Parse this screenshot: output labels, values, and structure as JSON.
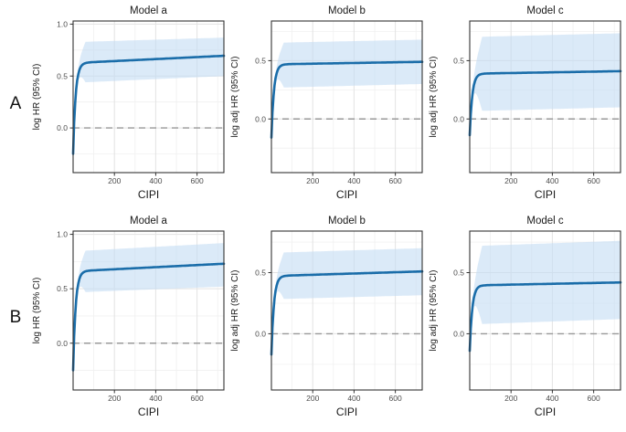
{
  "figure": {
    "row_labels": [
      "A",
      "B"
    ],
    "column_titles": [
      "Model a",
      "Model b",
      "Model c"
    ]
  },
  "styles": {
    "line_color": "#1a6da9",
    "ribbon_color": "#c3dcf3",
    "ribbon_opacity": 0.6,
    "ref_line_color": "#999999",
    "grid_major_color": "#e3e3e3",
    "grid_minor_color": "#f0f0f0",
    "border_color": "#333333",
    "tick_color": "#333333",
    "tick_text_color": "#4d4d4d",
    "text_color": "#1a1a1a",
    "background": "#ffffff"
  },
  "chart_data": [
    {
      "id": "A-a",
      "row": "A",
      "type": "line",
      "title": "Model a",
      "xlabel": "CIPI",
      "ylabel": "log HR (95% CI)",
      "xlim": [
        0,
        730
      ],
      "ylim": [
        -0.43,
        1.03
      ],
      "xticks": [
        200,
        400,
        600
      ],
      "yticks": [
        0.0,
        0.5,
        1.0
      ],
      "minor_x": [
        100,
        300,
        500,
        700
      ],
      "minor_y": [
        -0.25,
        0.25,
        0.75
      ],
      "ref_line_y": 0,
      "curve": {
        "y_start": -0.25,
        "plateau_start": 0.625,
        "plateau_end": 0.695,
        "tau": 12,
        "xmax": 730,
        "ci_x_full": 60,
        "ci_low": [
          0.44,
          0.5
        ],
        "ci_high": [
          0.83,
          0.87
        ]
      },
      "key_points": {
        "x": [
          0,
          10,
          25,
          50,
          100,
          200,
          400,
          600,
          730
        ],
        "line": [
          -0.25,
          0.245,
          0.517,
          0.616,
          0.635,
          0.644,
          0.663,
          0.683,
          0.695
        ]
      },
      "ci_points": {
        "x": [
          100,
          200,
          400,
          600,
          730
        ],
        "low": [
          0.444,
          0.453,
          0.47,
          0.488,
          0.5
        ],
        "high": [
          0.832,
          0.838,
          0.85,
          0.862,
          0.87
        ]
      }
    },
    {
      "id": "A-b",
      "row": "A",
      "type": "line",
      "title": "Model b",
      "xlabel": "CIPI",
      "ylabel": "log adj HR (95% CI)",
      "xlim": [
        0,
        730
      ],
      "ylim": [
        -0.46,
        0.84
      ],
      "xticks": [
        200,
        400,
        600
      ],
      "yticks": [
        0.0,
        0.5
      ],
      "minor_x": [
        100,
        300,
        500,
        700
      ],
      "minor_y": [
        -0.25,
        0.25,
        0.75
      ],
      "ref_line_y": 0,
      "curve": {
        "y_start": -0.16,
        "plateau_start": 0.468,
        "plateau_end": 0.49,
        "tau": 12,
        "xmax": 730,
        "ci_x_full": 60,
        "ci_low": [
          0.27,
          0.3
        ],
        "ci_high": [
          0.655,
          0.68
        ]
      },
      "key_points": {
        "x": [
          0,
          10,
          25,
          50,
          100,
          200,
          400,
          600,
          730
        ],
        "line": [
          -0.16,
          0.195,
          0.39,
          0.459,
          0.471,
          0.474,
          0.48,
          0.486,
          0.49
        ]
      },
      "ci_points": {
        "x": [
          100,
          200,
          400,
          600,
          730
        ],
        "low": [
          0.272,
          0.276,
          0.285,
          0.294,
          0.3
        ],
        "high": [
          0.657,
          0.66,
          0.668,
          0.675,
          0.68
        ]
      }
    },
    {
      "id": "A-c",
      "row": "A",
      "type": "line",
      "title": "Model c",
      "xlabel": "CIPI",
      "ylabel": "log adj HR (95% CI)",
      "xlim": [
        0,
        730
      ],
      "ylim": [
        -0.46,
        0.84
      ],
      "xticks": [
        200,
        400,
        600
      ],
      "yticks": [
        0.0,
        0.5
      ],
      "minor_x": [
        100,
        300,
        500,
        700
      ],
      "minor_y": [
        -0.25,
        0.25,
        0.75
      ],
      "ref_line_y": 0,
      "curve": {
        "y_start": -0.14,
        "plateau_start": 0.388,
        "plateau_end": 0.41,
        "tau": 12,
        "xmax": 730,
        "ci_x_full": 60,
        "ci_low": [
          0.07,
          0.1
        ],
        "ci_high": [
          0.705,
          0.735
        ]
      },
      "key_points": {
        "x": [
          0,
          10,
          25,
          50,
          100,
          200,
          400,
          600,
          730
        ],
        "line": [
          -0.14,
          0.159,
          0.322,
          0.38,
          0.391,
          0.394,
          0.4,
          0.406,
          0.41
        ]
      },
      "ci_points": {
        "x": [
          100,
          200,
          400,
          600,
          730
        ],
        "low": [
          0.072,
          0.076,
          0.085,
          0.094,
          0.1
        ],
        "high": [
          0.707,
          0.711,
          0.72,
          0.729,
          0.735
        ]
      }
    },
    {
      "id": "B-a",
      "row": "B",
      "type": "line",
      "title": "Model a",
      "xlabel": "CIPI",
      "ylabel": "log HR (95% CI)",
      "xlim": [
        0,
        730
      ],
      "ylim": [
        -0.43,
        1.03
      ],
      "xticks": [
        200,
        400,
        600
      ],
      "yticks": [
        0.0,
        0.5,
        1.0
      ],
      "minor_x": [
        100,
        300,
        500,
        700
      ],
      "minor_y": [
        -0.25,
        0.25,
        0.75
      ],
      "ref_line_y": 0,
      "curve": {
        "y_start": -0.25,
        "plateau_start": 0.66,
        "plateau_end": 0.73,
        "tau": 12,
        "xmax": 730,
        "ci_x_full": 60,
        "ci_low": [
          0.47,
          0.52
        ],
        "ci_high": [
          0.85,
          0.92
        ]
      },
      "key_points": {
        "x": [
          0,
          10,
          25,
          50,
          100,
          200,
          400,
          600,
          730
        ],
        "line": [
          -0.25,
          0.265,
          0.549,
          0.651,
          0.67,
          0.679,
          0.698,
          0.717,
          0.73
        ]
      },
      "ci_points": {
        "x": [
          100,
          200,
          400,
          600,
          730
        ],
        "low": [
          0.473,
          0.481,
          0.495,
          0.51,
          0.52
        ],
        "high": [
          0.854,
          0.865,
          0.886,
          0.907,
          0.92
        ]
      }
    },
    {
      "id": "B-b",
      "row": "B",
      "type": "line",
      "title": "Model b",
      "xlabel": "CIPI",
      "ylabel": "log adj HR (95% CI)",
      "xlim": [
        0,
        730
      ],
      "ylim": [
        -0.46,
        0.84
      ],
      "xticks": [
        200,
        400,
        600
      ],
      "yticks": [
        0.0,
        0.5
      ],
      "minor_x": [
        100,
        300,
        500,
        700
      ],
      "minor_y": [
        -0.25,
        0.25,
        0.75
      ],
      "ref_line_y": 0,
      "curve": {
        "y_start": -0.17,
        "plateau_start": 0.472,
        "plateau_end": 0.51,
        "tau": 12,
        "xmax": 730,
        "ci_x_full": 60,
        "ci_low": [
          0.285,
          0.315
        ],
        "ci_high": [
          0.665,
          0.7
        ]
      },
      "key_points": {
        "x": [
          0,
          10,
          25,
          50,
          100,
          200,
          400,
          600,
          730
        ],
        "line": [
          -0.17,
          0.193,
          0.393,
          0.465,
          0.477,
          0.482,
          0.493,
          0.503,
          0.51
        ]
      },
      "ci_points": {
        "x": [
          100,
          200,
          400,
          600,
          730
        ],
        "low": [
          0.287,
          0.291,
          0.3,
          0.309,
          0.315
        ],
        "high": [
          0.667,
          0.672,
          0.683,
          0.693,
          0.7
        ]
      }
    },
    {
      "id": "B-c",
      "row": "B",
      "type": "line",
      "title": "Model c",
      "xlabel": "CIPI",
      "ylabel": "log adj HR (95% CI)",
      "xlim": [
        0,
        730
      ],
      "ylim": [
        -0.46,
        0.84
      ],
      "xticks": [
        200,
        400,
        600
      ],
      "yticks": [
        0.0,
        0.5
      ],
      "minor_x": [
        100,
        300,
        500,
        700
      ],
      "minor_y": [
        -0.25,
        0.25,
        0.75
      ],
      "ref_line_y": 0,
      "curve": {
        "y_start": -0.14,
        "plateau_start": 0.395,
        "plateau_end": 0.42,
        "tau": 12,
        "xmax": 730,
        "ci_x_full": 60,
        "ci_low": [
          0.08,
          0.12
        ],
        "ci_high": [
          0.72,
          0.76
        ]
      },
      "key_points": {
        "x": [
          0,
          10,
          25,
          50,
          100,
          200,
          400,
          600,
          730
        ],
        "line": [
          -0.14,
          0.163,
          0.329,
          0.387,
          0.398,
          0.402,
          0.409,
          0.416,
          0.42
        ]
      },
      "ci_points": {
        "x": [
          100,
          200,
          400,
          600,
          730
        ],
        "low": [
          0.082,
          0.088,
          0.1,
          0.112,
          0.12
        ],
        "high": [
          0.722,
          0.728,
          0.74,
          0.752,
          0.76
        ]
      }
    }
  ]
}
